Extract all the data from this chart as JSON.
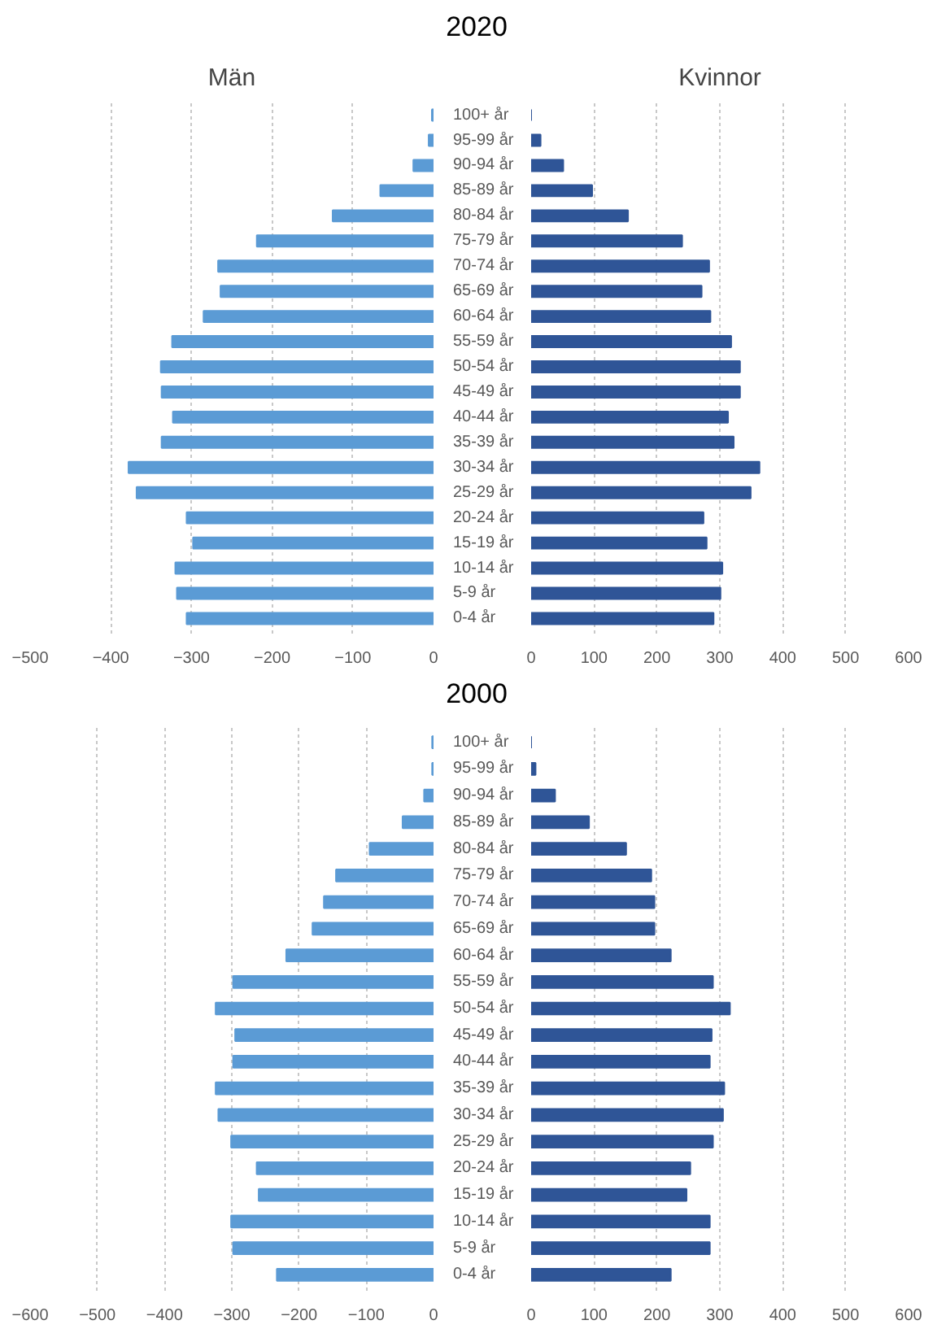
{
  "chart_data": [
    {
      "type": "bar",
      "orientation": "horizontal",
      "title": "2020",
      "subtitle": "Män",
      "categories": [
        "100+ år",
        "95-99 år",
        "90-94 år",
        "85-89 år",
        "80-84 år",
        "75-79 år",
        "70-74 år",
        "65-69 år",
        "60-64 år",
        "55-59 år",
        "50-54 år",
        "45-49 år",
        "40-44 år",
        "35-39 år",
        "30-34 år",
        "25-29 år",
        "20-24 år",
        "15-19 år",
        "10-14 år",
        "5-9 år",
        "0-4 år"
      ],
      "values": [
        -2,
        -6,
        -25,
        -66,
        -125,
        -219,
        -267,
        -264,
        -285,
        -324,
        -338,
        -337,
        -323,
        -337,
        -378,
        -368,
        -306,
        -298,
        -320,
        -318,
        -306
      ],
      "color": "#5b9bd5",
      "xlim": [
        -500,
        0
      ],
      "xticks": [
        -500,
        -400,
        -300,
        -200,
        -100,
        0
      ],
      "grid": "x"
    },
    {
      "type": "bar",
      "orientation": "horizontal",
      "subtitle": "Kvinnor",
      "values": [
        0,
        15,
        51,
        97,
        154,
        240,
        283,
        271,
        285,
        318,
        332,
        332,
        313,
        322,
        363,
        349,
        274,
        279,
        304,
        301,
        290
      ],
      "color": "#2f5597",
      "xlim": [
        0,
        600
      ],
      "xticks": [
        0,
        100,
        200,
        300,
        400,
        500,
        600
      ],
      "grid": "x"
    },
    {
      "type": "bar",
      "orientation": "horizontal",
      "title": "2000",
      "categories": [
        "100+ år",
        "95-99 år",
        "90-94 år",
        "85-89 år",
        "80-84 år",
        "75-79 år",
        "70-74 år",
        "65-69 år",
        "60-64 år",
        "55-59 år",
        "50-54 år",
        "45-49 år",
        "40-44 år",
        "35-39 år",
        "30-34 år",
        "25-29 år",
        "20-24 år",
        "15-19 år",
        "10-14 år",
        "5-9 år",
        "0-4 år"
      ],
      "values": [
        -2,
        -2,
        -14,
        -46,
        -95,
        -145,
        -163,
        -180,
        -219,
        -298,
        -324,
        -295,
        -298,
        -324,
        -320,
        -301,
        -263,
        -260,
        -301,
        -298,
        -233
      ],
      "color": "#5b9bd5",
      "xlim": [
        -600,
        0
      ],
      "xticks": [
        -600,
        -500,
        -400,
        -300,
        -200,
        -100,
        0
      ],
      "grid": "x"
    },
    {
      "type": "bar",
      "orientation": "horizontal",
      "values": [
        0,
        7,
        38,
        92,
        151,
        191,
        196,
        196,
        222,
        289,
        316,
        287,
        284,
        307,
        305,
        289,
        253,
        247,
        284,
        284,
        222
      ],
      "color": "#2f5597",
      "xlim": [
        0,
        600
      ],
      "xticks": [
        0,
        100,
        200,
        300,
        400,
        500,
        600
      ],
      "grid": "x"
    }
  ]
}
